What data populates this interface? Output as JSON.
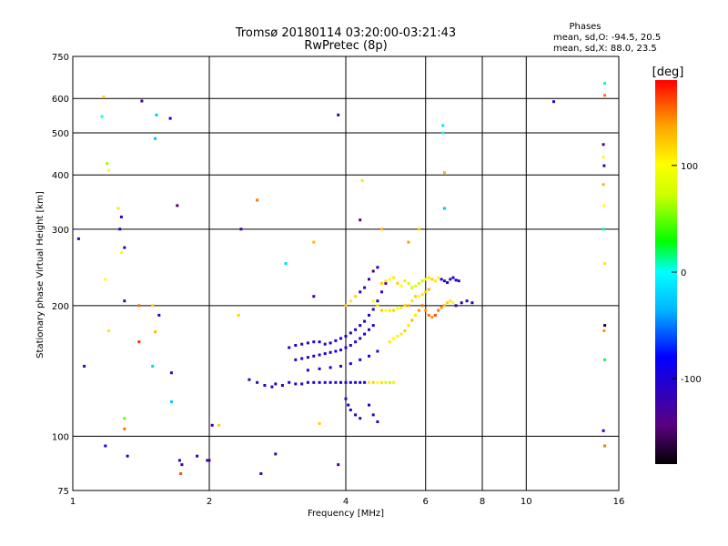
{
  "chart_data": {
    "type": "scatter",
    "title": "Tromsø 20180114 03:20:00-03:21:43",
    "subtitle": "RwPretec (8p)",
    "stats": {
      "heading": "Phases",
      "line1": "mean, sd,O: -94.5, 20.5",
      "line2": "mean, sd,X:  88.0, 23.5"
    },
    "xlabel": "Frequency [MHz]",
    "ylabel": "Stationary phase Virtual Height [km]",
    "x_scale": "log",
    "y_scale": "log",
    "xlim": [
      1,
      16
    ],
    "ylim": [
      75,
      750
    ],
    "x_ticks": [
      1,
      2,
      4,
      6,
      8,
      10,
      16
    ],
    "x_tick_labels": [
      "1",
      "2",
      "4",
      "6",
      "8",
      "10",
      "16"
    ],
    "y_ticks": [
      75,
      100,
      200,
      300,
      400,
      500,
      600,
      750
    ],
    "y_tick_labels": [
      "75",
      "100",
      "200",
      "300",
      "400",
      "500",
      "600",
      "750"
    ],
    "x_grid": [
      1,
      2,
      4,
      6,
      8,
      10,
      16
    ],
    "y_grid": [
      75,
      100,
      200,
      300,
      400,
      500,
      600,
      750
    ],
    "grid": true,
    "colorbar": {
      "label": "[deg]",
      "range": [
        -180,
        180
      ],
      "ticks": [
        100,
        0,
        -100
      ],
      "tick_labels": [
        "100",
        "0",
        "-100"
      ]
    },
    "series": [
      {
        "points": [
          [
            1.03,
            285,
            -120
          ],
          [
            1.06,
            145,
            -110
          ],
          [
            1.18,
            95,
            -100
          ],
          [
            1.17,
            605,
            120
          ],
          [
            1.16,
            545,
            0
          ],
          [
            1.2,
            410,
            100
          ],
          [
            1.19,
            425,
            60
          ],
          [
            1.18,
            230,
            100
          ],
          [
            1.2,
            175,
            110
          ],
          [
            1.26,
            335,
            110
          ],
          [
            1.28,
            320,
            -110
          ],
          [
            1.27,
            300,
            -120
          ],
          [
            1.3,
            272,
            -110
          ],
          [
            1.28,
            265,
            100
          ],
          [
            1.3,
            205,
            -120
          ],
          [
            1.3,
            110,
            50
          ],
          [
            1.3,
            104,
            150
          ],
          [
            1.32,
            90,
            -110
          ],
          [
            1.42,
            592,
            -130
          ],
          [
            1.4,
            200,
            150
          ],
          [
            1.4,
            165,
            170
          ],
          [
            1.55,
            190,
            -110
          ],
          [
            1.52,
            174,
            130
          ],
          [
            1.5,
            145,
            -20
          ],
          [
            1.5,
            200,
            120
          ],
          [
            1.52,
            485,
            -30
          ],
          [
            1.53,
            550,
            -30
          ],
          [
            1.64,
            540,
            -80
          ],
          [
            1.65,
            140,
            -110
          ],
          [
            1.65,
            120,
            -30
          ],
          [
            1.7,
            340,
            -150
          ],
          [
            1.72,
            88,
            -110
          ],
          [
            1.74,
            86,
            -120
          ],
          [
            1.73,
            82,
            160
          ],
          [
            1.88,
            90,
            -110
          ],
          [
            1.98,
            88,
            -120
          ],
          [
            2.0,
            88,
            -130
          ],
          [
            2.03,
            106,
            -120
          ],
          [
            2.1,
            106,
            120
          ],
          [
            2.32,
            190,
            120
          ],
          [
            2.35,
            300,
            -130
          ],
          [
            2.55,
            350,
            150
          ],
          [
            2.6,
            82,
            -120
          ],
          [
            2.8,
            91,
            -120
          ],
          [
            2.95,
            250,
            -20
          ],
          [
            3.4,
            280,
            130
          ],
          [
            3.4,
            210,
            -130
          ],
          [
            3.5,
            107,
            120
          ],
          [
            3.85,
            86,
            -130
          ],
          [
            3.85,
            550,
            -110
          ],
          [
            4.3,
            315,
            -130
          ],
          [
            4.35,
            388,
            110
          ],
          [
            4.8,
            300,
            130
          ],
          [
            5.5,
            280,
            140
          ],
          [
            5.8,
            300,
            120
          ],
          [
            6.55,
            520,
            -10
          ],
          [
            6.55,
            500,
            0
          ],
          [
            6.6,
            405,
            130
          ],
          [
            6.6,
            335,
            -30
          ],
          [
            11.5,
            590,
            -110
          ],
          [
            14.9,
            650,
            10
          ],
          [
            14.9,
            610,
            150
          ],
          [
            14.8,
            470,
            -140
          ],
          [
            14.8,
            440,
            100
          ],
          [
            14.85,
            420,
            -100
          ],
          [
            14.8,
            380,
            130
          ],
          [
            14.85,
            340,
            100
          ],
          [
            14.8,
            300,
            10
          ],
          [
            14.9,
            250,
            110
          ],
          [
            14.9,
            180,
            -170
          ],
          [
            14.85,
            175,
            140
          ],
          [
            14.9,
            150,
            20
          ],
          [
            14.8,
            103,
            -110
          ],
          [
            14.9,
            95,
            150
          ],
          [
            2.45,
            135,
            -110
          ],
          [
            2.55,
            133,
            -120
          ],
          [
            2.65,
            131,
            -110
          ],
          [
            2.75,
            130,
            -100
          ],
          [
            2.8,
            132,
            -120
          ],
          [
            2.9,
            131,
            -110
          ],
          [
            3.0,
            133,
            -90
          ],
          [
            3.1,
            132,
            -100
          ],
          [
            3.2,
            132,
            -110
          ],
          [
            3.3,
            133,
            -100
          ],
          [
            3.4,
            133,
            -110
          ],
          [
            3.5,
            133,
            -100
          ],
          [
            3.6,
            133,
            -95
          ],
          [
            3.7,
            133,
            -100
          ],
          [
            3.8,
            133,
            -110
          ],
          [
            3.9,
            133,
            -100
          ],
          [
            4.0,
            133,
            -105
          ],
          [
            4.1,
            133,
            -100
          ],
          [
            4.2,
            133,
            -110
          ],
          [
            4.3,
            133,
            -100
          ],
          [
            4.4,
            133,
            -95
          ],
          [
            4.5,
            133,
            110
          ],
          [
            4.6,
            133,
            120
          ],
          [
            4.7,
            133,
            100
          ],
          [
            4.8,
            133,
            110
          ],
          [
            4.9,
            133,
            80
          ],
          [
            5.0,
            133,
            70
          ],
          [
            5.1,
            133,
            110
          ],
          [
            3.0,
            160,
            -110
          ],
          [
            3.1,
            162,
            -100
          ],
          [
            3.2,
            163,
            -110
          ],
          [
            3.3,
            164,
            -100
          ],
          [
            3.4,
            165,
            -110
          ],
          [
            3.5,
            165,
            -100
          ],
          [
            3.6,
            163,
            -120
          ],
          [
            3.7,
            164,
            -100
          ],
          [
            3.8,
            166,
            -110
          ],
          [
            3.9,
            168,
            -100
          ],
          [
            4.0,
            170,
            -110
          ],
          [
            4.1,
            173,
            -100
          ],
          [
            4.2,
            176,
            -110
          ],
          [
            4.3,
            180,
            -100
          ],
          [
            4.4,
            184,
            -110
          ],
          [
            4.5,
            190,
            -100
          ],
          [
            4.6,
            196,
            -110
          ],
          [
            4.7,
            205,
            -100
          ],
          [
            4.8,
            215,
            -110
          ],
          [
            4.9,
            225,
            -120
          ],
          [
            3.1,
            150,
            -110
          ],
          [
            3.2,
            151,
            -100
          ],
          [
            3.3,
            152,
            -110
          ],
          [
            3.4,
            153,
            -100
          ],
          [
            3.5,
            154,
            -120
          ],
          [
            3.6,
            155,
            -100
          ],
          [
            3.7,
            156,
            -110
          ],
          [
            3.8,
            157,
            -100
          ],
          [
            3.9,
            158,
            -110
          ],
          [
            4.0,
            160,
            -100
          ],
          [
            4.1,
            162,
            -110
          ],
          [
            4.2,
            165,
            -100
          ],
          [
            4.3,
            168,
            -110
          ],
          [
            4.4,
            172,
            -100
          ],
          [
            4.5,
            176,
            -110
          ],
          [
            4.6,
            180,
            -100
          ],
          [
            3.3,
            142,
            -100
          ],
          [
            3.5,
            143,
            -110
          ],
          [
            3.7,
            144,
            -100
          ],
          [
            3.9,
            145,
            -110
          ],
          [
            4.1,
            147,
            -100
          ],
          [
            4.3,
            150,
            -110
          ],
          [
            4.5,
            153,
            -100
          ],
          [
            4.7,
            157,
            -110
          ],
          [
            4.0,
            122,
            -120
          ],
          [
            4.05,
            118,
            -110
          ],
          [
            4.1,
            115,
            -100
          ],
          [
            4.2,
            112,
            -110
          ],
          [
            4.3,
            110,
            -120
          ],
          [
            4.5,
            118,
            -100
          ],
          [
            4.6,
            112,
            -110
          ],
          [
            4.7,
            108,
            -120
          ],
          [
            4.0,
            200,
            120
          ],
          [
            4.1,
            205,
            110
          ],
          [
            4.2,
            210,
            120
          ],
          [
            4.3,
            215,
            -120
          ],
          [
            4.4,
            220,
            -110
          ],
          [
            4.5,
            230,
            -130
          ],
          [
            4.6,
            240,
            -150
          ],
          [
            4.7,
            245,
            -100
          ],
          [
            4.6,
            205,
            100
          ],
          [
            4.7,
            200,
            110
          ],
          [
            4.8,
            195,
            120
          ],
          [
            4.9,
            195,
            100
          ],
          [
            5.0,
            195,
            110
          ],
          [
            5.1,
            195,
            120
          ],
          [
            5.2,
            197,
            100
          ],
          [
            5.3,
            198,
            110
          ],
          [
            5.4,
            200,
            120
          ],
          [
            5.5,
            200,
            130
          ],
          [
            5.6,
            205,
            110
          ],
          [
            5.7,
            210,
            120
          ],
          [
            5.8,
            210,
            100
          ],
          [
            5.9,
            212,
            110
          ],
          [
            6.0,
            215,
            120
          ],
          [
            6.1,
            218,
            130
          ],
          [
            4.8,
            225,
            120
          ],
          [
            4.9,
            228,
            110
          ],
          [
            5.0,
            230,
            100
          ],
          [
            5.1,
            232,
            110
          ],
          [
            5.2,
            225,
            120
          ],
          [
            5.3,
            222,
            100
          ],
          [
            5.4,
            228,
            110
          ],
          [
            5.5,
            225,
            80
          ],
          [
            5.6,
            220,
            70
          ],
          [
            5.7,
            222,
            80
          ],
          [
            5.8,
            225,
            75
          ],
          [
            5.9,
            228,
            70
          ],
          [
            6.0,
            230,
            100
          ],
          [
            6.1,
            232,
            110
          ],
          [
            6.2,
            230,
            120
          ],
          [
            6.3,
            228,
            110
          ],
          [
            6.4,
            232,
            100
          ],
          [
            6.5,
            230,
            -100
          ],
          [
            6.6,
            228,
            -110
          ],
          [
            6.7,
            226,
            -100
          ],
          [
            6.8,
            230,
            -120
          ],
          [
            6.9,
            232,
            -110
          ],
          [
            7.0,
            229,
            -100
          ],
          [
            7.1,
            228,
            -110
          ],
          [
            5.0,
            165,
            110
          ],
          [
            5.1,
            168,
            100
          ],
          [
            5.2,
            170,
            90
          ],
          [
            5.3,
            172,
            110
          ],
          [
            5.4,
            175,
            120
          ],
          [
            5.5,
            180,
            110
          ],
          [
            5.6,
            185,
            130
          ],
          [
            5.7,
            190,
            110
          ],
          [
            5.8,
            195,
            140
          ],
          [
            5.9,
            200,
            150
          ],
          [
            6.0,
            195,
            140
          ],
          [
            6.1,
            190,
            150
          ],
          [
            6.2,
            188,
            140
          ],
          [
            6.3,
            190,
            160
          ],
          [
            6.4,
            195,
            150
          ],
          [
            6.5,
            198,
            140
          ],
          [
            6.6,
            200,
            130
          ],
          [
            6.7,
            203,
            120
          ],
          [
            6.8,
            205,
            110
          ],
          [
            6.9,
            203,
            100
          ],
          [
            7.0,
            200,
            -120
          ],
          [
            7.2,
            203,
            -110
          ],
          [
            7.4,
            205,
            -100
          ],
          [
            7.6,
            203,
            -110
          ]
        ]
      }
    ]
  }
}
